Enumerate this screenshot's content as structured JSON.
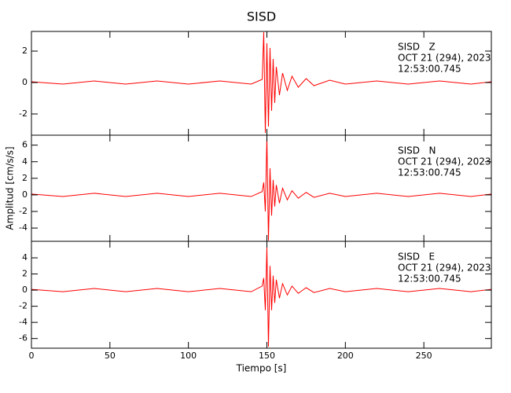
{
  "chart_data": [
    {
      "type": "line",
      "title": "SISD",
      "annotations": [
        "SISD   Z",
        "OCT 21 (294), 2023",
        "12:53:00.745"
      ],
      "xlim": [
        0,
        293
      ],
      "xticks": [
        0,
        50,
        100,
        150,
        200,
        250
      ],
      "ylim": [
        -3.35,
        3.25
      ],
      "yticks": [
        -2,
        0,
        2
      ],
      "x": [
        0,
        20,
        40,
        60,
        80,
        100,
        120,
        140,
        147,
        148,
        149,
        150,
        151,
        152,
        153,
        154,
        155,
        156,
        158,
        160,
        163,
        166,
        170,
        175,
        180,
        190,
        200,
        220,
        240,
        260,
        280,
        293
      ],
      "series": [
        {
          "color": "#ff0000",
          "values": [
            0.05,
            -0.1,
            0.1,
            -0.1,
            0.1,
            -0.1,
            0.1,
            -0.1,
            0.2,
            3.2,
            -3.2,
            2.5,
            -2.8,
            2.2,
            -1.8,
            1.5,
            -1.3,
            1.0,
            -0.8,
            0.6,
            -0.5,
            0.4,
            -0.3,
            0.25,
            -0.2,
            0.15,
            -0.1,
            0.1,
            -0.1,
            0.1,
            -0.1,
            0.05
          ]
        }
      ]
    },
    {
      "type": "line",
      "ylabel": "Amplitud [cm/s/s]",
      "annotations": [
        "SISD   N",
        "OCT 21 (294), 2023",
        "12:53:00.745"
      ],
      "xlim": [
        0,
        293
      ],
      "xticks": [
        0,
        50,
        100,
        150,
        200,
        250
      ],
      "ylim": [
        -5.6,
        7.2
      ],
      "yticks": [
        -4,
        -2,
        0,
        2,
        4,
        6
      ],
      "x": [
        0,
        20,
        40,
        60,
        80,
        100,
        120,
        140,
        147,
        148,
        149,
        150,
        151,
        152,
        153,
        154,
        155,
        156,
        158,
        160,
        163,
        166,
        170,
        175,
        180,
        190,
        200,
        220,
        240,
        260,
        280,
        293
      ],
      "series": [
        {
          "color": "#ff0000",
          "values": [
            0.1,
            -0.2,
            0.2,
            -0.2,
            0.2,
            -0.2,
            0.2,
            -0.2,
            0.4,
            1.5,
            -2,
            7,
            -5.5,
            3.2,
            -2.5,
            1.8,
            -1.4,
            1.2,
            -1,
            0.8,
            -0.6,
            0.5,
            -0.4,
            0.3,
            -0.3,
            0.2,
            -0.2,
            0.2,
            -0.2,
            0.2,
            -0.2,
            0.1
          ]
        }
      ]
    },
    {
      "type": "line",
      "xlabel": "Tiempo [s]",
      "annotations": [
        "SISD   E",
        "OCT 21 (294), 2023",
        "12:53:00.745"
      ],
      "xlim": [
        0,
        293
      ],
      "xticks": [
        0,
        50,
        100,
        150,
        200,
        250
      ],
      "ylim": [
        -7.2,
        6.05
      ],
      "yticks": [
        -6,
        -4,
        -2,
        0,
        2,
        4
      ],
      "x": [
        0,
        20,
        40,
        60,
        80,
        100,
        120,
        140,
        147,
        148,
        149,
        150,
        151,
        152,
        153,
        154,
        155,
        156,
        158,
        160,
        163,
        166,
        170,
        175,
        180,
        190,
        200,
        220,
        240,
        260,
        280,
        293
      ],
      "series": [
        {
          "color": "#ff0000",
          "values": [
            0.1,
            -0.2,
            0.2,
            -0.2,
            0.2,
            -0.2,
            0.2,
            -0.2,
            0.5,
            1.5,
            -2.5,
            5.3,
            -7,
            3,
            -2.5,
            1.8,
            -1.6,
            1.3,
            -1,
            0.8,
            -0.6,
            0.5,
            -0.4,
            0.3,
            -0.3,
            0.2,
            -0.2,
            0.2,
            -0.2,
            0.2,
            -0.2,
            0.1
          ]
        }
      ]
    }
  ]
}
